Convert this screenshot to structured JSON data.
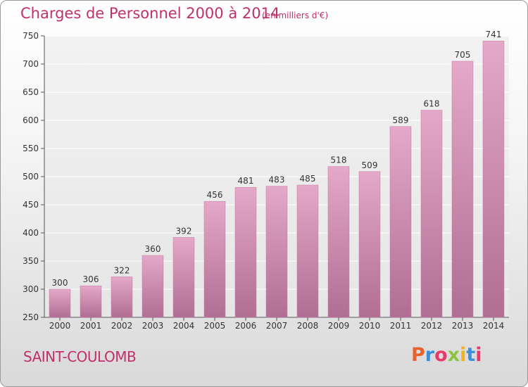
{
  "header": {
    "title": "Charges de Personnel 2000 à 2014",
    "subtitle": "(en milliers d'€)"
  },
  "footer": {
    "town": "SAINT-COULOMB",
    "logo_text": "Proxiti",
    "logo_colors": [
      "#e8622a",
      "#3a8fd8",
      "#e83a6a",
      "#8cc63f",
      "#f2b21c",
      "#3a8fd8",
      "#e83a6a"
    ]
  },
  "chart_data": {
    "type": "bar",
    "title": "Charges de Personnel 2000 à 2014",
    "subtitle": "(en milliers d'€)",
    "categories": [
      "2000",
      "2001",
      "2002",
      "2003",
      "2004",
      "2005",
      "2006",
      "2007",
      "2008",
      "2009",
      "2010",
      "2011",
      "2012",
      "2013",
      "2014"
    ],
    "values": [
      300,
      306,
      322,
      360,
      392,
      456,
      481,
      483,
      485,
      518,
      509,
      589,
      618,
      705,
      741
    ],
    "ylim": [
      250,
      750
    ],
    "yticks": [
      250,
      300,
      350,
      400,
      450,
      500,
      550,
      600,
      650,
      700,
      750
    ],
    "grid": true,
    "bar_color_top": "#e4a8c8",
    "bar_color_bottom": "#b06e92"
  }
}
